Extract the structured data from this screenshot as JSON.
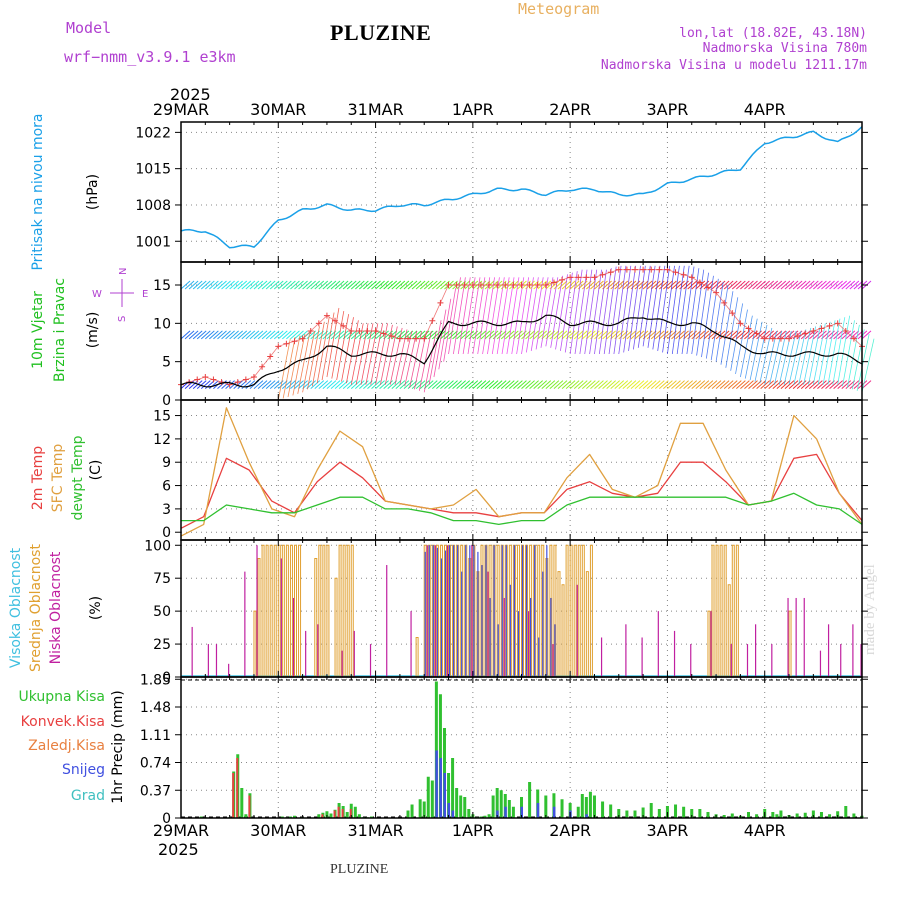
{
  "header": {
    "title": "PLUZINE",
    "model_label": "Model",
    "model_name": "wrf−nmm_v3.9.1  e3km",
    "meteogram": "Meteogram",
    "lonlat": "lon,lat (18.82E, 43.18N)",
    "altitude": "Nadmorska Visina 780m",
    "altitude_model": "Nadmorska Visina u modelu 1211.17m",
    "footer": "PLUZINE",
    "credit": "made by Angel"
  },
  "colors": {
    "pressure": "#1aa0e8",
    "temp2m": "#e84040",
    "sfc": "#e0a040",
    "dewpt": "#30c030",
    "cloud_high": "#40c0e0",
    "cloud_mid": "#e0a030",
    "cloud_low": "#c020a0",
    "rain_total": "#30c030",
    "rain_conv": "#e84040",
    "snow": "#4050e0",
    "grad": "#40c0c0"
  },
  "chart_data": [
    {
      "type": "line",
      "name": "pressure",
      "ylabel": [
        "Pritisak na nivou mora",
        "(hPa)"
      ],
      "ylim": [
        997,
        1024
      ],
      "yticks": [
        1001,
        1008,
        1015,
        1022
      ],
      "xlabel_top_year": "2025",
      "x_days": [
        "29MAR",
        "30MAR",
        "31MAR",
        "1APR",
        "2APR",
        "3APR",
        "4APR"
      ],
      "x_hours": [
        0,
        6,
        12,
        18,
        24,
        30,
        36,
        42,
        48,
        54,
        60,
        66,
        72,
        78,
        84,
        90,
        96,
        102,
        108,
        114,
        120,
        126,
        132,
        138,
        144,
        150,
        156,
        162,
        168
      ],
      "values": [
        1003,
        1003,
        1000,
        1000,
        1005,
        1007,
        1008,
        1007,
        1007,
        1008,
        1008,
        1009,
        1010,
        1011,
        1011,
        1010,
        1011,
        1011,
        1010,
        1010,
        1012,
        1013,
        1014,
        1015,
        1020,
        1021,
        1022,
        1020,
        1023
      ]
    },
    {
      "type": "line",
      "name": "wind",
      "ylabel": [
        "10m Vjetar",
        "Brzina i Pravac",
        "(m/s)"
      ],
      "ylim": [
        0,
        18
      ],
      "yticks": [
        0,
        5,
        10,
        15
      ],
      "compass": {
        "n": "N",
        "e": "E",
        "w": "W",
        "s": "S"
      },
      "gust_hours": [
        0,
        6,
        12,
        18,
        24,
        30,
        36,
        42,
        48,
        54,
        60,
        66,
        72,
        78,
        84,
        90,
        96,
        102,
        108,
        114,
        120,
        126,
        132,
        138,
        144,
        150,
        156,
        162,
        168
      ],
      "gust_values": [
        2,
        3,
        2,
        3,
        7,
        8,
        11,
        9,
        9,
        8,
        8,
        15,
        15,
        15,
        15,
        15,
        16,
        16,
        17,
        17,
        17,
        16,
        14,
        10,
        8,
        8,
        9,
        10,
        7
      ],
      "speed_values": [
        2,
        2,
        2,
        2,
        4,
        5,
        7,
        6,
        6,
        6,
        5,
        10,
        10,
        10,
        10,
        11,
        10,
        10,
        10,
        11,
        10,
        10,
        9,
        7,
        6,
        6,
        6,
        6,
        5
      ]
    },
    {
      "type": "line",
      "name": "temperature",
      "ylabel": [
        "2m Temp",
        "SFC Temp",
        "dewpt Temp",
        "(C)"
      ],
      "ylim": [
        -1,
        17
      ],
      "yticks": [
        0,
        3,
        6,
        9,
        12,
        15
      ],
      "series": [
        {
          "name": "2m Temp",
          "values": [
            0.5,
            2,
            9.5,
            8,
            4,
            2.5,
            6.5,
            9,
            7,
            4,
            3.5,
            3,
            2.5,
            2.5,
            2,
            2.5,
            2.5,
            5.5,
            6.5,
            5,
            4.5,
            5,
            9,
            9,
            6.5,
            3.5,
            4,
            9.5,
            10,
            5,
            1.5
          ]
        },
        {
          "name": "SFC Temp",
          "values": [
            -0.5,
            1,
            16,
            9,
            3,
            2,
            8,
            13,
            11,
            4,
            3.5,
            3,
            3.5,
            5.5,
            2,
            2.5,
            2.5,
            7,
            10,
            5.5,
            4.5,
            6,
            14,
            14,
            8,
            3.5,
            4,
            15,
            12,
            5,
            1
          ]
        },
        {
          "name": "dewpt Temp",
          "values": [
            1.5,
            1.5,
            3.5,
            3,
            2.5,
            2.5,
            3.5,
            4.5,
            4.5,
            3,
            3,
            2.5,
            1.5,
            1.5,
            1,
            1.5,
            1.5,
            3.5,
            4.5,
            4.5,
            4.5,
            4.5,
            4.5,
            4.5,
            4.5,
            3.5,
            4,
            5,
            3.5,
            3,
            1
          ]
        }
      ]
    },
    {
      "type": "bar",
      "name": "clouds",
      "ylabel": [
        "Visoka Oblacnost",
        "Srednja Oblacnost",
        "Niska Oblacnost",
        "(%)"
      ],
      "ylim": [
        0,
        104
      ],
      "yticks": [
        0,
        25,
        50,
        75,
        100
      ],
      "low_hours": [
        3,
        7,
        9,
        12,
        16,
        19,
        25,
        28,
        31,
        34,
        40,
        43,
        47,
        51,
        57,
        61,
        63,
        66,
        72,
        76,
        80,
        86,
        92,
        98,
        104,
        110,
        114,
        118,
        122,
        126,
        131,
        136,
        140,
        142,
        146,
        150,
        152,
        154,
        158,
        160,
        163,
        166,
        168
      ],
      "low_values": [
        38,
        25,
        25,
        10,
        80,
        100,
        90,
        60,
        35,
        40,
        20,
        35,
        25,
        85,
        50,
        100,
        100,
        100,
        100,
        80,
        60,
        50,
        25,
        70,
        30,
        40,
        30,
        50,
        35,
        25,
        50,
        25,
        25,
        40,
        25,
        60,
        60,
        60,
        20,
        40,
        25,
        40,
        25
      ],
      "mid_hours": [
        18,
        19,
        20,
        21,
        22,
        23,
        24,
        25,
        26,
        27,
        28,
        29,
        33,
        34,
        35,
        36,
        38,
        39,
        40,
        41,
        42,
        58,
        60,
        61,
        62,
        63,
        64,
        65,
        66,
        67,
        68,
        69,
        70,
        71,
        72,
        73,
        74,
        75,
        76,
        77,
        78,
        79,
        80,
        81,
        82,
        83,
        84,
        85,
        86,
        87,
        88,
        89,
        90,
        91,
        92,
        93,
        94,
        95,
        96,
        97,
        98,
        99,
        100,
        101,
        130,
        131,
        132,
        133,
        134,
        135,
        136,
        137,
        150
      ],
      "mid_values": [
        50,
        90,
        100,
        100,
        100,
        100,
        100,
        100,
        100,
        100,
        100,
        100,
        90,
        100,
        100,
        100,
        75,
        100,
        100,
        100,
        100,
        30,
        100,
        100,
        100,
        100,
        100,
        100,
        100,
        100,
        100,
        100,
        100,
        90,
        100,
        80,
        100,
        100,
        100,
        100,
        100,
        100,
        100,
        100,
        100,
        100,
        100,
        100,
        100,
        100,
        100,
        100,
        90,
        100,
        100,
        80,
        70,
        100,
        100,
        100,
        100,
        100,
        80,
        100,
        50,
        100,
        100,
        100,
        100,
        70,
        100,
        100,
        50
      ],
      "high_hours": [
        60,
        61,
        62,
        63,
        64,
        65,
        66,
        67,
        68,
        69,
        70,
        71,
        72,
        73,
        74,
        75,
        76,
        77,
        78,
        79,
        80,
        81,
        82,
        83,
        84,
        85,
        86,
        87,
        88,
        89,
        90,
        91,
        92
      ],
      "high_values": [
        95,
        100,
        100,
        98,
        90,
        96,
        100,
        100,
        100,
        80,
        100,
        100,
        100,
        95,
        85,
        100,
        60,
        100,
        40,
        100,
        100,
        70,
        100,
        50,
        100,
        100,
        60,
        100,
        30,
        80,
        100,
        60,
        40
      ]
    },
    {
      "type": "bar",
      "name": "precipitation",
      "ylabel": "1hr Precip (mm)",
      "legend": [
        "Ukupna Kisa",
        "Konvek.Kisa",
        "Zaledj.Kisa",
        "Snijeg",
        "Grad"
      ],
      "ylim": [
        0,
        1.88
      ],
      "yticks": [
        0,
        0.37,
        0.74,
        1.11,
        1.48,
        1.85
      ],
      "x_days": [
        "29MAR",
        "30MAR",
        "31MAR",
        "1APR",
        "2APR",
        "3APR",
        "4APR"
      ],
      "xlabel_bottom_year": "2025",
      "hours": [
        5,
        6,
        12,
        13,
        14,
        15,
        16,
        17,
        25,
        26,
        27,
        28,
        30,
        34,
        35,
        36,
        37,
        38,
        39,
        40,
        41,
        42,
        43,
        44,
        45,
        46,
        47,
        56,
        57,
        59,
        60,
        61,
        62,
        63,
        64,
        65,
        66,
        67,
        68,
        69,
        70,
        71,
        72,
        73,
        74,
        75,
        76,
        77,
        78,
        79,
        80,
        81,
        82,
        84,
        86,
        88,
        90,
        92,
        94,
        96,
        98,
        99,
        100,
        101,
        102,
        104,
        106,
        108,
        110,
        112,
        114,
        116,
        118,
        120,
        122,
        124,
        126,
        128,
        130,
        132,
        134,
        136,
        138,
        140,
        142,
        144,
        146,
        147,
        148,
        150,
        152,
        154,
        156,
        158,
        160,
        162,
        164,
        166,
        168
      ],
      "values": [
        0.02,
        0.01,
        0.01,
        0.62,
        0.85,
        0.4,
        0.05,
        0.33,
        0.02,
        0.01,
        0.02,
        0.03,
        0.01,
        0.05,
        0.07,
        0.09,
        0.06,
        0.11,
        0.2,
        0.16,
        0.08,
        0.19,
        0.15,
        0.05,
        0.01,
        0.01,
        0.02,
        0.1,
        0.18,
        0.25,
        0.22,
        0.55,
        0.5,
        1.82,
        1.65,
        1.2,
        0.6,
        0.8,
        0.4,
        0.3,
        0.28,
        0.12,
        0.05,
        0.01,
        0.02,
        0.03,
        0.05,
        0.3,
        0.4,
        0.37,
        0.32,
        0.24,
        0.15,
        0.28,
        0.48,
        0.38,
        0.3,
        0.33,
        0.25,
        0.2,
        0.15,
        0.32,
        0.28,
        0.35,
        0.3,
        0.22,
        0.18,
        0.12,
        0.1,
        0.1,
        0.14,
        0.2,
        0.12,
        0.16,
        0.18,
        0.15,
        0.12,
        0.12,
        0.08,
        0.05,
        0.04,
        0.06,
        0.03,
        0.08,
        0.05,
        0.12,
        0.08,
        0.05,
        0.1,
        0.04,
        0.06,
        0.07,
        0.1,
        0.08,
        0.05,
        0.09,
        0.16,
        0.06,
        0.03
      ],
      "snow_hours": [
        63,
        64,
        65,
        66,
        67,
        78,
        80,
        84,
        88,
        92,
        96,
        100
      ],
      "snow_values": [
        0.9,
        0.8,
        0.6,
        0.2,
        0.1,
        0.1,
        0.15,
        0.15,
        0.2,
        0.15,
        0.1,
        0.05
      ],
      "conv_hours": [
        13,
        14,
        17,
        35,
        38,
        39,
        40,
        42
      ],
      "conv_values": [
        0.6,
        0.8,
        0.3,
        0.05,
        0.1,
        0.15,
        0.12,
        0.12
      ]
    }
  ]
}
